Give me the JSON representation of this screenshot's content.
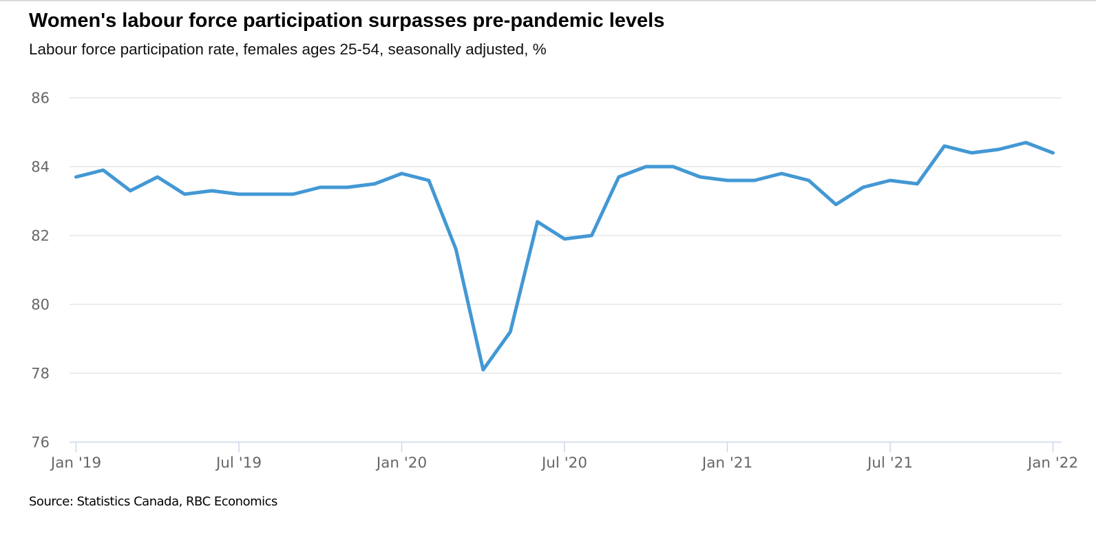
{
  "header": {
    "title": "Women's labour force participation surpasses pre-pandemic levels",
    "subtitle": "Labour force participation rate, females ages 25-54, seasonally adjusted, %"
  },
  "footer": {
    "source": "Source: Statistics Canada, RBC Economics"
  },
  "chart_data": {
    "type": "line",
    "title": "Women's labour force participation surpasses pre-pandemic levels",
    "subtitle": "Labour force participation rate, females ages 25-54, seasonally adjusted, %",
    "xlabel": "",
    "ylabel": "Labour force participation rate, females ages 25-54, seasonally adjusted, %",
    "ylim": [
      76,
      86
    ],
    "y_ticks": [
      76,
      78,
      80,
      82,
      84,
      86
    ],
    "grid": true,
    "legend": "none",
    "x_tick_labels": [
      "Jan '19",
      "Jul '19",
      "Jan '20",
      "Jul '20",
      "Jan '21",
      "Jul '21",
      "Jan '22"
    ],
    "x_tick_positions": [
      0,
      6,
      12,
      18,
      24,
      30,
      36
    ],
    "months": [
      "Jan 2019",
      "Feb 2019",
      "Mar 2019",
      "Apr 2019",
      "May 2019",
      "Jun 2019",
      "Jul 2019",
      "Aug 2019",
      "Sep 2019",
      "Oct 2019",
      "Nov 2019",
      "Dec 2019",
      "Jan 2020",
      "Feb 2020",
      "Mar 2020",
      "Apr 2020",
      "May 2020",
      "Jun 2020",
      "Jul 2020",
      "Aug 2020",
      "Sep 2020",
      "Oct 2020",
      "Nov 2020",
      "Dec 2020",
      "Jan 2021",
      "Feb 2021",
      "Mar 2021",
      "Apr 2021",
      "May 2021",
      "Jun 2021",
      "Jul 2021",
      "Aug 2021",
      "Sep 2021",
      "Oct 2021",
      "Nov 2021",
      "Dec 2021",
      "Jan 2022"
    ],
    "series": [
      {
        "name": "Labour force participation rate, females 25-54",
        "values": [
          83.7,
          83.9,
          83.3,
          83.7,
          83.2,
          83.3,
          83.2,
          83.2,
          83.2,
          83.4,
          83.4,
          83.5,
          83.8,
          83.6,
          81.6,
          78.1,
          79.2,
          82.4,
          81.9,
          82.0,
          83.7,
          84.0,
          84.0,
          83.7,
          83.6,
          83.6,
          83.8,
          83.6,
          82.9,
          83.4,
          83.6,
          83.5,
          84.6,
          84.4,
          84.5,
          84.7,
          84.4
        ]
      }
    ],
    "colors": {
      "line": "#4398d4",
      "gridline": "#e6e6e6",
      "axis_line": "#ccd6eb",
      "tick_label": "#666666"
    }
  }
}
